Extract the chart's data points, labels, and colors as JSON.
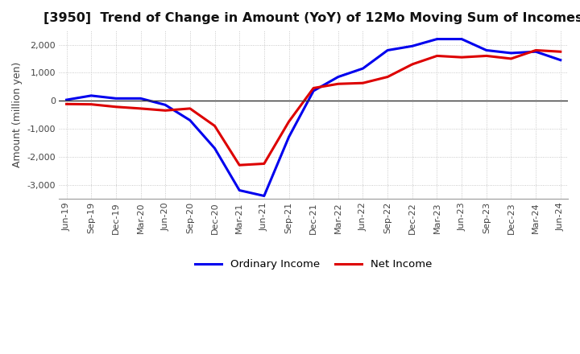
{
  "title": "[3950]  Trend of Change in Amount (YoY) of 12Mo Moving Sum of Incomes",
  "ylabel": "Amount (million yen)",
  "ylim": [
    -3500,
    2500
  ],
  "yticks": [
    -3000,
    -2000,
    -1000,
    0,
    1000,
    2000
  ],
  "background_color": "#ffffff",
  "grid_color": "#bbbbbb",
  "line_ordinary_color": "#0000ee",
  "line_net_color": "#dd0000",
  "x_labels": [
    "Jun-19",
    "Sep-19",
    "Dec-19",
    "Mar-20",
    "Jun-20",
    "Sep-20",
    "Dec-20",
    "Mar-21",
    "Jun-21",
    "Sep-21",
    "Dec-21",
    "Mar-22",
    "Jun-22",
    "Sep-22",
    "Dec-22",
    "Mar-23",
    "Jun-23",
    "Sep-23",
    "Dec-23",
    "Mar-24",
    "Jun-24"
  ],
  "ordinary_income": [
    30,
    180,
    80,
    80,
    -150,
    -700,
    -1700,
    -3200,
    -3400,
    -1300,
    350,
    850,
    1150,
    1800,
    1950,
    2200,
    2200,
    1800,
    1700,
    1750,
    1450
  ],
  "net_income": [
    -120,
    -130,
    -220,
    -280,
    -350,
    -280,
    -900,
    -2300,
    -2250,
    -750,
    450,
    600,
    630,
    850,
    1300,
    1600,
    1550,
    1600,
    1500,
    1800,
    1750
  ],
  "legend_ordinary": "Ordinary Income",
  "legend_net": "Net Income"
}
